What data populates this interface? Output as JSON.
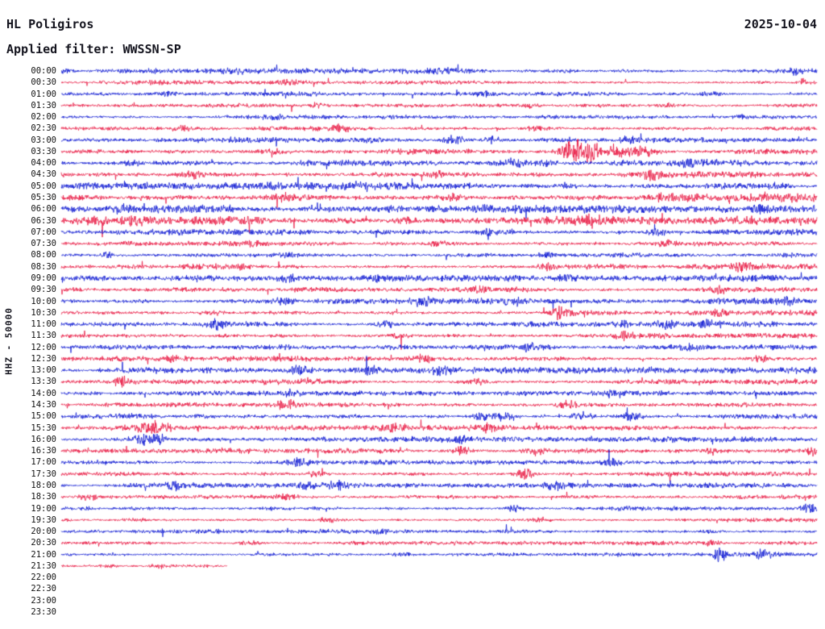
{
  "header": {
    "station": "HL Poligiros",
    "date": "2025-10-04",
    "filter": "Applied filter: WWSSN-SP"
  },
  "axis": {
    "label": "HHZ - 50000"
  },
  "chart_data": {
    "type": "line",
    "subtype": "helicorder-day-plot",
    "title": "HL Poligiros",
    "date": "2025-10-04",
    "filter": "WWSSN-SP",
    "channel": "HHZ",
    "scale": 50000,
    "row_minutes": 30,
    "grid": false,
    "legend": false,
    "trace_colors": {
      "blue": "#0b16d2",
      "red": "#e81540"
    },
    "rows": [
      {
        "label": "00:00",
        "color": "blue",
        "noise": 1.7,
        "events": [
          {
            "x": 0.005,
            "a": 3,
            "w": 4
          },
          {
            "x": 0.23,
            "a": 2,
            "w": 8
          },
          {
            "x": 0.5,
            "a": 1.5,
            "w": 10
          },
          {
            "x": 0.97,
            "a": 2.5,
            "w": 8
          }
        ]
      },
      {
        "label": "00:30",
        "color": "red",
        "noise": 1.5,
        "events": [
          {
            "x": 0.3,
            "a": 1.5,
            "w": 10
          },
          {
            "x": 0.985,
            "a": 4,
            "w": 6
          }
        ]
      },
      {
        "label": "01:00",
        "color": "blue",
        "noise": 1.4,
        "events": [
          {
            "x": 0.14,
            "a": 2,
            "w": 8
          },
          {
            "x": 0.56,
            "a": 1.5,
            "w": 8
          },
          {
            "x": 0.86,
            "a": 2,
            "w": 8
          }
        ]
      },
      {
        "label": "01:30",
        "color": "red",
        "noise": 1.3,
        "events": [
          {
            "x": 0.34,
            "a": 2.5,
            "w": 7
          },
          {
            "x": 0.62,
            "a": 1.5,
            "w": 8
          },
          {
            "x": 0.8,
            "a": 1.8,
            "w": 8
          }
        ]
      },
      {
        "label": "02:00",
        "color": "blue",
        "noise": 1.3,
        "events": [
          {
            "x": 0.28,
            "a": 1.8,
            "w": 8
          },
          {
            "x": 0.9,
            "a": 1.5,
            "w": 8
          }
        ]
      },
      {
        "label": "02:30",
        "color": "red",
        "noise": 1.6,
        "events": [
          {
            "x": 0.16,
            "a": 2.2,
            "w": 8
          },
          {
            "x": 0.37,
            "a": 2,
            "w": 8
          },
          {
            "x": 0.63,
            "a": 1.8,
            "w": 8
          }
        ]
      },
      {
        "label": "03:00",
        "color": "blue",
        "noise": 1.9,
        "events": [
          {
            "x": 0.52,
            "a": 3.2,
            "w": 9
          },
          {
            "x": 0.57,
            "a": 2.6,
            "w": 8
          },
          {
            "x": 0.75,
            "a": 2,
            "w": 8
          }
        ]
      },
      {
        "label": "03:30",
        "color": "red",
        "noise": 2.0,
        "events": [
          {
            "x": 0.28,
            "a": 2.5,
            "w": 9
          },
          {
            "x": 0.675,
            "a": 8,
            "w": 14
          },
          {
            "x": 0.7,
            "a": 9,
            "w": 10
          },
          {
            "x": 0.73,
            "a": 6,
            "w": 12
          },
          {
            "x": 0.77,
            "a": 3,
            "w": 10
          }
        ]
      },
      {
        "label": "04:00",
        "color": "blue",
        "noise": 2.3,
        "events": [
          {
            "x": 0.09,
            "a": 2,
            "w": 8
          },
          {
            "x": 0.6,
            "a": 3.5,
            "w": 10
          },
          {
            "x": 0.64,
            "a": 3,
            "w": 8
          },
          {
            "x": 0.83,
            "a": 2.5,
            "w": 8
          }
        ]
      },
      {
        "label": "04:30",
        "color": "red",
        "noise": 2.3,
        "events": [
          {
            "x": 0.175,
            "a": 3.2,
            "w": 9
          },
          {
            "x": 0.5,
            "a": 2.5,
            "w": 9
          },
          {
            "x": 0.78,
            "a": 3,
            "w": 9
          }
        ]
      },
      {
        "label": "05:00",
        "color": "blue",
        "noise": 2.4,
        "events": [
          {
            "x": 0.4,
            "a": 2,
            "w": 9
          },
          {
            "x": 0.67,
            "a": 2.5,
            "w": 9
          },
          {
            "x": 0.95,
            "a": 2.5,
            "w": 8
          }
        ]
      },
      {
        "label": "05:30",
        "color": "red",
        "noise": 2.8,
        "events": [
          {
            "x": 0.3,
            "a": 2.5,
            "w": 9
          },
          {
            "x": 0.52,
            "a": 2.5,
            "w": 9
          },
          {
            "x": 0.8,
            "a": 2.5,
            "w": 9
          }
        ]
      },
      {
        "label": "06:00",
        "color": "blue",
        "noise": 2.6,
        "events": [
          {
            "x": 0.08,
            "a": 3.5,
            "w": 9
          },
          {
            "x": 0.56,
            "a": 2.5,
            "w": 9
          },
          {
            "x": 0.93,
            "a": 3.5,
            "w": 9
          }
        ]
      },
      {
        "label": "06:30",
        "color": "red",
        "noise": 2.8,
        "events": [
          {
            "x": 0.1,
            "a": 3,
            "w": 9
          },
          {
            "x": 0.46,
            "a": 2.5,
            "w": 9
          },
          {
            "x": 0.7,
            "a": 2.2,
            "w": 9
          }
        ]
      },
      {
        "label": "07:00",
        "color": "blue",
        "noise": 2.0,
        "events": [
          {
            "x": 0.56,
            "a": 3,
            "w": 9
          },
          {
            "x": 0.79,
            "a": 2.5,
            "w": 9
          }
        ]
      },
      {
        "label": "07:30",
        "color": "red",
        "noise": 1.8,
        "events": [
          {
            "x": 0.26,
            "a": 2.2,
            "w": 9
          },
          {
            "x": 0.5,
            "a": 1.8,
            "w": 9
          },
          {
            "x": 0.8,
            "a": 2,
            "w": 9
          }
        ]
      },
      {
        "label": "08:00",
        "color": "blue",
        "noise": 1.8,
        "events": [
          {
            "x": 0.062,
            "a": 3.5,
            "w": 5
          },
          {
            "x": 0.3,
            "a": 1.8,
            "w": 9
          },
          {
            "x": 0.64,
            "a": 2,
            "w": 9
          }
        ]
      },
      {
        "label": "08:30",
        "color": "red",
        "noise": 1.8,
        "events": [
          {
            "x": 0.24,
            "a": 2,
            "w": 9
          },
          {
            "x": 0.645,
            "a": 2.8,
            "w": 8
          },
          {
            "x": 0.9,
            "a": 4.5,
            "w": 9
          }
        ]
      },
      {
        "label": "09:00",
        "color": "blue",
        "noise": 2.0,
        "events": [
          {
            "x": 0.3,
            "a": 2.8,
            "w": 9
          },
          {
            "x": 0.42,
            "a": 2.5,
            "w": 9
          },
          {
            "x": 0.67,
            "a": 2,
            "w": 9
          }
        ]
      },
      {
        "label": "09:30",
        "color": "red",
        "noise": 1.8,
        "events": [
          {
            "x": 0.55,
            "a": 2,
            "w": 9
          },
          {
            "x": 0.87,
            "a": 2.8,
            "w": 9
          }
        ]
      },
      {
        "label": "10:00",
        "color": "blue",
        "noise": 2.0,
        "events": [
          {
            "x": 0.29,
            "a": 2.6,
            "w": 9
          },
          {
            "x": 0.475,
            "a": 3,
            "w": 9
          },
          {
            "x": 0.6,
            "a": 2.6,
            "w": 9
          },
          {
            "x": 0.96,
            "a": 2.8,
            "w": 9
          }
        ]
      },
      {
        "label": "10:30",
        "color": "red",
        "noise": 1.8,
        "events": [
          {
            "x": 0.2,
            "a": 2,
            "w": 9
          },
          {
            "x": 0.66,
            "a": 4.2,
            "w": 9
          },
          {
            "x": 0.87,
            "a": 2.6,
            "w": 9
          }
        ]
      },
      {
        "label": "11:00",
        "color": "blue",
        "noise": 1.8,
        "events": [
          {
            "x": 0.205,
            "a": 3.6,
            "w": 7
          },
          {
            "x": 0.43,
            "a": 2.6,
            "w": 9
          },
          {
            "x": 0.74,
            "a": 2.4,
            "w": 9
          },
          {
            "x": 0.8,
            "a": 3,
            "w": 8
          },
          {
            "x": 0.86,
            "a": 2.8,
            "w": 8
          }
        ]
      },
      {
        "label": "11:30",
        "color": "red",
        "noise": 1.8,
        "events": [
          {
            "x": 0.45,
            "a": 2,
            "w": 9
          },
          {
            "x": 0.745,
            "a": 3.2,
            "w": 8
          }
        ]
      },
      {
        "label": "12:00",
        "color": "blue",
        "noise": 1.8,
        "events": [
          {
            "x": 0.62,
            "a": 2.6,
            "w": 9
          },
          {
            "x": 0.835,
            "a": 3,
            "w": 8
          }
        ]
      },
      {
        "label": "12:30",
        "color": "red",
        "noise": 1.8,
        "events": [
          {
            "x": 0.15,
            "a": 2.6,
            "w": 9
          },
          {
            "x": 0.48,
            "a": 3,
            "w": 9
          },
          {
            "x": 0.925,
            "a": 3.6,
            "w": 8
          }
        ]
      },
      {
        "label": "13:00",
        "color": "blue",
        "noise": 2.0,
        "events": [
          {
            "x": 0.315,
            "a": 4,
            "w": 9
          },
          {
            "x": 0.405,
            "a": 4,
            "w": 9
          },
          {
            "x": 0.505,
            "a": 3,
            "w": 9
          }
        ]
      },
      {
        "label": "13:30",
        "color": "red",
        "noise": 1.8,
        "events": [
          {
            "x": 0.08,
            "a": 4.6,
            "w": 8
          },
          {
            "x": 0.33,
            "a": 2.2,
            "w": 9
          },
          {
            "x": 0.55,
            "a": 2.6,
            "w": 9
          }
        ]
      },
      {
        "label": "14:00",
        "color": "blue",
        "noise": 1.6,
        "events": [
          {
            "x": 0.3,
            "a": 1.8,
            "w": 9
          },
          {
            "x": 0.74,
            "a": 2.6,
            "w": 9
          }
        ]
      },
      {
        "label": "14:30",
        "color": "red",
        "noise": 1.8,
        "events": [
          {
            "x": 0.3,
            "a": 5,
            "w": 8
          },
          {
            "x": 0.67,
            "a": 3.6,
            "w": 9
          }
        ]
      },
      {
        "label": "15:00",
        "color": "blue",
        "noise": 1.8,
        "events": [
          {
            "x": 0.555,
            "a": 4.6,
            "w": 8
          },
          {
            "x": 0.585,
            "a": 4,
            "w": 8
          },
          {
            "x": 0.69,
            "a": 3.6,
            "w": 8
          },
          {
            "x": 0.755,
            "a": 3.6,
            "w": 8
          }
        ]
      },
      {
        "label": "15:30",
        "color": "red",
        "noise": 1.8,
        "events": [
          {
            "x": 0.12,
            "a": 6,
            "w": 14
          },
          {
            "x": 0.44,
            "a": 3.6,
            "w": 9
          },
          {
            "x": 0.565,
            "a": 3,
            "w": 9
          }
        ]
      },
      {
        "label": "16:00",
        "color": "blue",
        "noise": 1.8,
        "events": [
          {
            "x": 0.12,
            "a": 6.5,
            "w": 14
          },
          {
            "x": 0.53,
            "a": 2.6,
            "w": 9
          }
        ]
      },
      {
        "label": "16:30",
        "color": "red",
        "noise": 1.8,
        "events": [
          {
            "x": 0.53,
            "a": 3.6,
            "w": 9
          },
          {
            "x": 0.625,
            "a": 3,
            "w": 9
          },
          {
            "x": 0.86,
            "a": 3.2,
            "w": 9
          },
          {
            "x": 0.995,
            "a": 4.6,
            "w": 6
          }
        ]
      },
      {
        "label": "17:00",
        "color": "blue",
        "noise": 1.6,
        "events": [
          {
            "x": 0.315,
            "a": 3,
            "w": 9
          },
          {
            "x": 0.73,
            "a": 4,
            "w": 9
          }
        ]
      },
      {
        "label": "17:30",
        "color": "red",
        "noise": 1.6,
        "events": [
          {
            "x": 0.335,
            "a": 2.6,
            "w": 9
          },
          {
            "x": 0.615,
            "a": 5,
            "w": 8
          }
        ]
      },
      {
        "label": "18:00",
        "color": "blue",
        "noise": 1.6,
        "events": [
          {
            "x": 0.15,
            "a": 3.6,
            "w": 8
          },
          {
            "x": 0.33,
            "a": 3.6,
            "w": 8
          },
          {
            "x": 0.365,
            "a": 3.6,
            "w": 8
          },
          {
            "x": 0.655,
            "a": 3,
            "w": 9
          }
        ]
      },
      {
        "label": "18:30",
        "color": "red",
        "noise": 1.6,
        "events": [
          {
            "x": 0.035,
            "a": 4.6,
            "w": 6
          },
          {
            "x": 0.3,
            "a": 2,
            "w": 9
          }
        ]
      },
      {
        "label": "19:00",
        "color": "blue",
        "noise": 1.5,
        "events": [
          {
            "x": 0.6,
            "a": 3.6,
            "w": 8
          },
          {
            "x": 0.99,
            "a": 3.6,
            "w": 7
          }
        ]
      },
      {
        "label": "19:30",
        "color": "red",
        "noise": 1.5,
        "events": [
          {
            "x": 0.1,
            "a": 2,
            "w": 9
          },
          {
            "x": 0.35,
            "a": 2,
            "w": 9
          },
          {
            "x": 0.64,
            "a": 1.8,
            "w": 9
          }
        ]
      },
      {
        "label": "20:00",
        "color": "blue",
        "noise": 1.4,
        "events": [
          {
            "x": 0.42,
            "a": 2,
            "w": 9
          },
          {
            "x": 0.86,
            "a": 1.8,
            "w": 9
          }
        ]
      },
      {
        "label": "20:30",
        "color": "red",
        "noise": 1.4,
        "events": [
          {
            "x": 0.25,
            "a": 2,
            "w": 9
          },
          {
            "x": 0.86,
            "a": 2.4,
            "w": 9
          }
        ]
      },
      {
        "label": "21:00",
        "color": "blue",
        "noise": 1.4,
        "events": [
          {
            "x": 0.45,
            "a": 2,
            "w": 9
          },
          {
            "x": 0.872,
            "a": 8.5,
            "w": 5
          },
          {
            "x": 0.93,
            "a": 3.6,
            "w": 9
          }
        ]
      },
      {
        "label": "21:30",
        "color": "red",
        "noise": 1.2,
        "end": 0.22,
        "events": [
          {
            "x": 0.06,
            "a": 1.6,
            "w": 8
          },
          {
            "x": 0.13,
            "a": 2,
            "w": 8
          }
        ]
      },
      {
        "label": "22:00",
        "color": "blue",
        "noise": 0,
        "has_data": false,
        "events": []
      },
      {
        "label": "22:30",
        "color": "red",
        "noise": 0,
        "has_data": false,
        "events": []
      },
      {
        "label": "23:00",
        "color": "blue",
        "noise": 0,
        "has_data": false,
        "events": []
      },
      {
        "label": "23:30",
        "color": "red",
        "noise": 0,
        "has_data": false,
        "events": []
      }
    ]
  }
}
